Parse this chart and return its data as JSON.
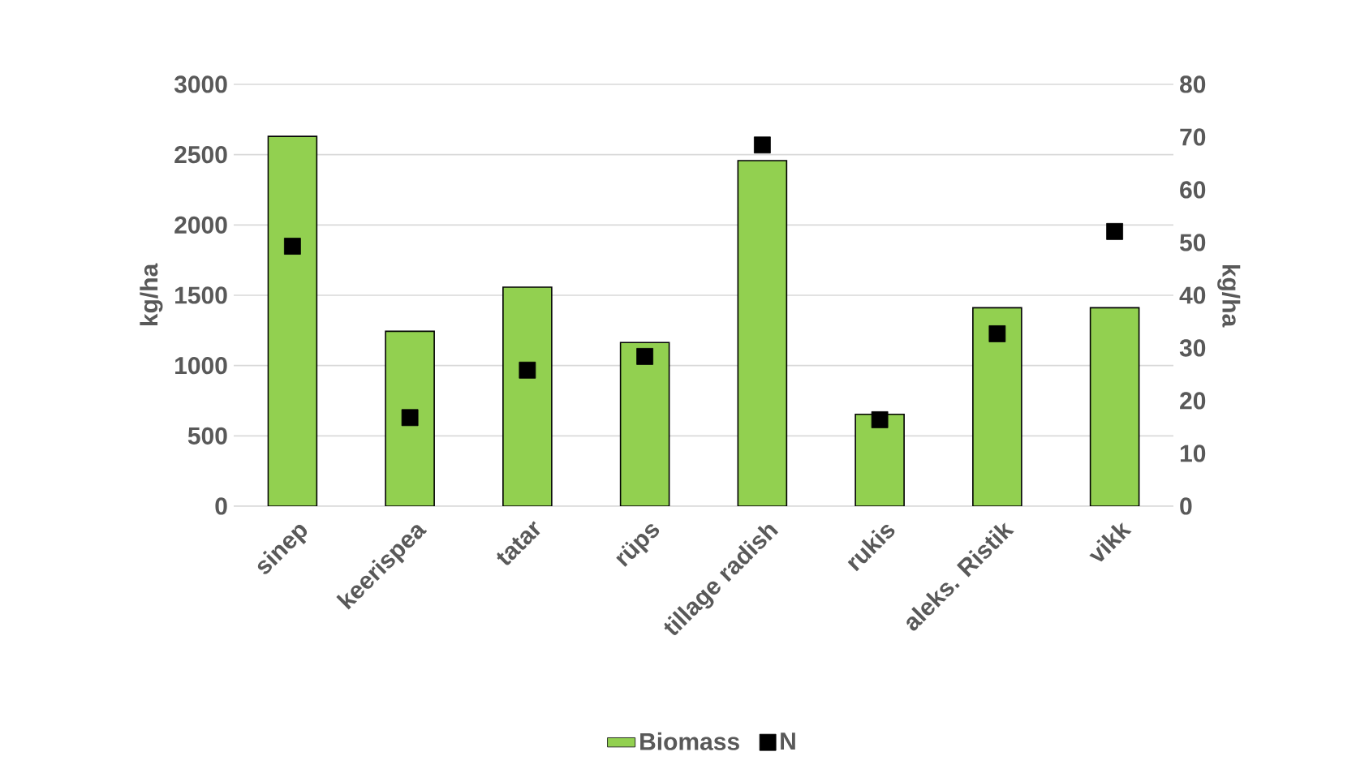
{
  "chart_data": {
    "type": "bar",
    "categories": [
      "sinep",
      "keerispea",
      "tatar",
      "rüps",
      "tillage radish",
      "rukis",
      "aleks. Ristik",
      "vikk"
    ],
    "series": [
      {
        "name": "Biomass",
        "color": "#92d050",
        "values": [
          2630,
          1244,
          1558,
          1164,
          2458,
          653,
          1411,
          1411
        ]
      },
      {
        "name": "N",
        "type": "scatter",
        "axis": "y2",
        "color": "#000000",
        "values": [
          49.3,
          16.8,
          25.8,
          28.4,
          68.5,
          16.4,
          32.7,
          52.1
        ]
      }
    ],
    "ylabel": "kg/ha",
    "y2label": "kg/ha",
    "ylim": [
      0,
      3000
    ],
    "yticks": [
      0,
      500,
      1000,
      1500,
      2000,
      2500,
      3000
    ],
    "y2lim": [
      0,
      80
    ],
    "y2ticks": [
      0,
      10,
      20,
      30,
      40,
      50,
      60,
      70,
      80
    ],
    "grid": "y",
    "legend": "bottom",
    "marker": "square"
  }
}
